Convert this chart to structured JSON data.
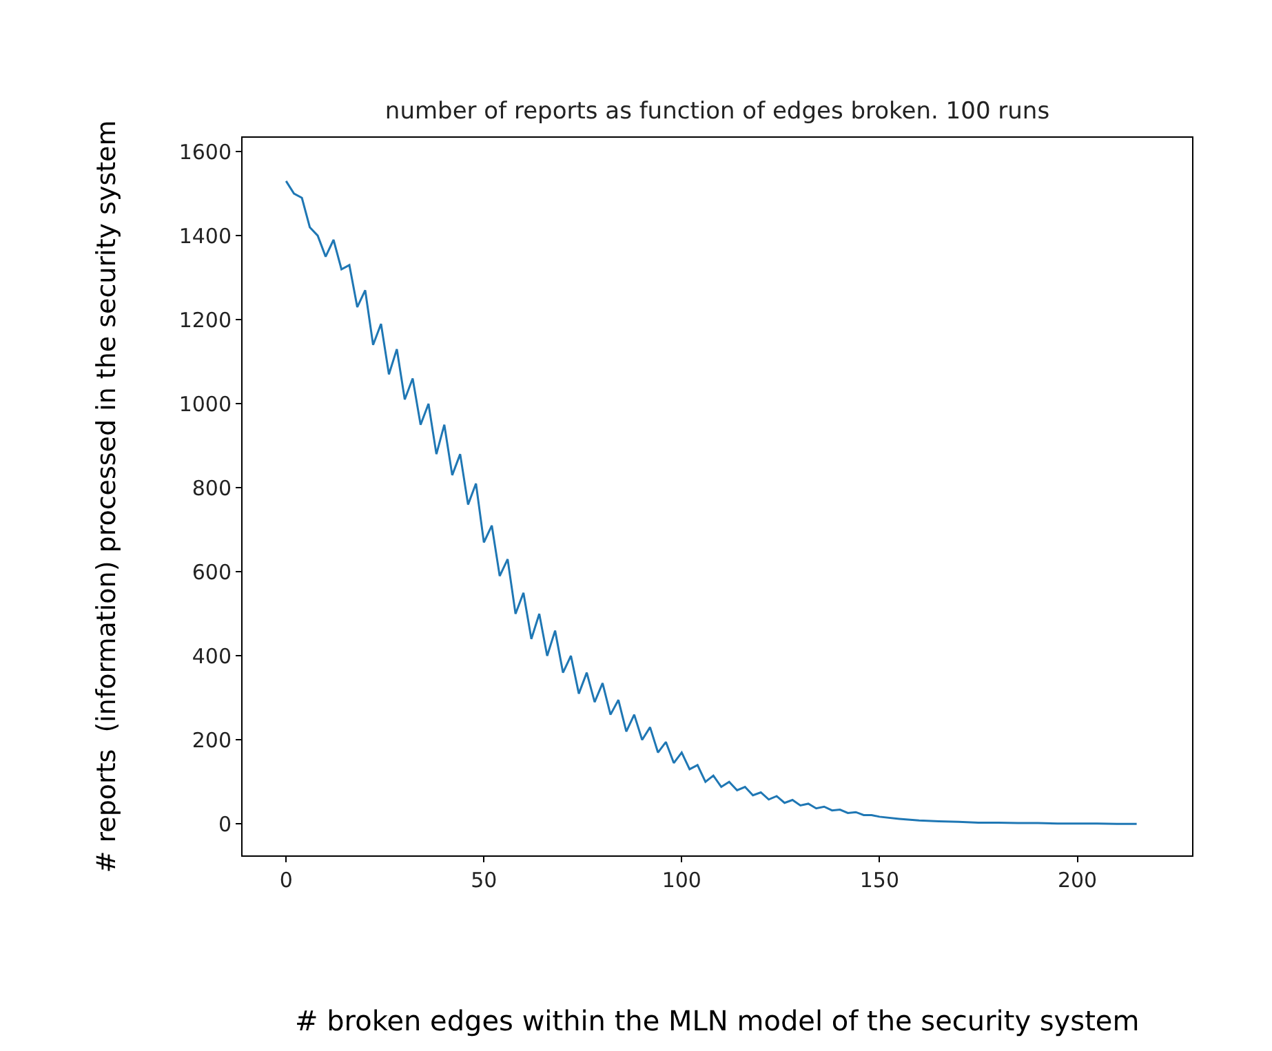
{
  "chart_data": {
    "type": "line",
    "title": "number of reports as function of edges broken. 100 runs",
    "xlabel": "# broken edges within the MLN model of the security system",
    "ylabel": "# reports  (information) processed in the security system",
    "series": [
      {
        "color": "#1f77b4",
        "x": [
          0,
          2,
          4,
          6,
          8,
          10,
          12,
          14,
          16,
          18,
          20,
          22,
          24,
          26,
          28,
          30,
          32,
          34,
          36,
          38,
          40,
          42,
          44,
          46,
          48,
          50,
          52,
          54,
          56,
          58,
          60,
          62,
          64,
          66,
          68,
          70,
          72,
          74,
          76,
          78,
          80,
          82,
          84,
          86,
          88,
          90,
          92,
          94,
          96,
          98,
          100,
          102,
          104,
          106,
          108,
          110,
          112,
          114,
          116,
          118,
          120,
          122,
          124,
          126,
          128,
          130,
          132,
          134,
          136,
          138,
          140,
          142,
          144,
          146,
          148,
          150,
          155,
          160,
          165,
          170,
          175,
          180,
          185,
          190,
          195,
          200,
          205,
          210,
          215
        ],
        "values": [
          1530,
          1500,
          1490,
          1420,
          1400,
          1350,
          1390,
          1320,
          1330,
          1230,
          1270,
          1140,
          1190,
          1070,
          1130,
          1010,
          1060,
          950,
          1000,
          880,
          950,
          830,
          880,
          760,
          810,
          670,
          710,
          590,
          630,
          500,
          550,
          440,
          500,
          400,
          460,
          360,
          400,
          310,
          360,
          290,
          335,
          260,
          295,
          220,
          260,
          200,
          230,
          170,
          195,
          145,
          170,
          130,
          140,
          100,
          115,
          88,
          100,
          80,
          88,
          68,
          75,
          58,
          66,
          50,
          57,
          44,
          48,
          37,
          41,
          32,
          34,
          26,
          28,
          21,
          21,
          17,
          12,
          8,
          6,
          5,
          3,
          3,
          2,
          2,
          1,
          1,
          1,
          0,
          0
        ]
      }
    ],
    "xlim": [
      -11,
      229
    ],
    "ylim": [
      -75,
      1633
    ],
    "xticks": [
      0,
      50,
      100,
      150,
      200
    ],
    "yticks": [
      0,
      200,
      400,
      600,
      800,
      1000,
      1200,
      1400,
      1600
    ],
    "legend": false,
    "marker": "none",
    "line_style": "solid"
  }
}
